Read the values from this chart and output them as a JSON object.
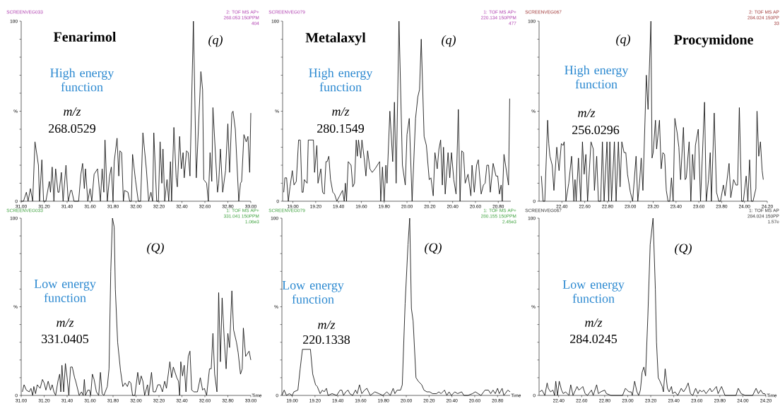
{
  "chart_data": [
    {
      "type": "line",
      "title": "Fenarimol",
      "color": "#000000",
      "annotations": [
        "(q)",
        "High energy function",
        "m/z",
        "268.0529",
        "SCREENVEG033",
        "2: TOF MS AP+",
        "268.053 150PPM",
        "404"
      ],
      "xlim": [
        31.0,
        33.0
      ],
      "ylim": [
        0,
        100
      ],
      "xticks": [
        {
          "value": 31.0,
          "label": "31.00"
        },
        {
          "value": 31.2,
          "label": "31.20"
        },
        {
          "value": 31.4,
          "label": "31.40"
        },
        {
          "value": 31.6,
          "label": "31.60"
        },
        {
          "value": 31.8,
          "label": "31.80"
        },
        {
          "value": 32.0,
          "label": "32.00"
        },
        {
          "value": 32.2,
          "label": "32.20"
        },
        {
          "value": 32.4,
          "label": "32.40"
        },
        {
          "value": 32.6,
          "label": "32.60"
        },
        {
          "value": 32.8,
          "label": "32.80"
        },
        {
          "value": 33.0,
          "label": "33.00"
        }
      ],
      "yticks": [
        0,
        {
          "value": 10,
          "label": null
        },
        {
          "value": 20,
          "label": null
        },
        {
          "value": 30,
          "label": null
        },
        {
          "value": 40,
          "label": null
        },
        {
          "value": 50,
          "label": "%"
        },
        {
          "value": 60,
          "label": null
        },
        {
          "value": 70,
          "label": null
        },
        {
          "value": 80,
          "label": null
        },
        {
          "value": 90,
          "label": null
        },
        100
      ],
      "x": [
        31.0,
        31.02,
        31.045,
        31.06,
        31.08,
        31.1,
        31.12,
        31.15,
        31.16,
        31.18,
        31.195,
        31.215,
        31.245,
        31.255,
        31.27,
        31.285,
        31.3,
        31.32,
        31.33,
        31.35,
        31.365,
        31.39,
        31.41,
        31.43,
        31.44,
        31.46,
        31.5,
        31.52,
        31.535,
        31.55,
        31.56,
        31.58,
        31.6,
        31.615,
        31.635,
        31.665,
        31.69,
        31.705,
        31.72,
        31.73,
        31.75,
        31.77,
        31.785,
        31.8,
        31.81,
        31.835,
        31.85,
        31.86,
        31.875,
        31.89,
        31.9,
        31.93,
        31.945,
        31.96,
        31.97,
        31.995,
        32.02,
        32.04,
        32.06,
        32.09,
        32.11,
        32.13,
        32.145,
        32.155,
        32.18,
        32.195,
        32.21,
        32.225,
        32.235,
        32.25,
        32.27,
        32.285,
        32.3,
        32.31,
        32.33,
        32.35,
        32.36,
        32.38,
        32.395,
        32.41,
        32.42,
        32.44,
        32.455,
        32.47,
        32.5,
        32.525,
        32.565,
        32.58,
        32.59,
        32.615,
        32.63,
        32.645,
        32.66,
        32.67,
        32.71,
        32.72,
        32.735,
        32.755,
        32.78,
        32.8,
        32.815,
        32.835,
        32.845,
        32.865,
        32.895,
        32.91,
        32.92,
        32.94,
        32.96,
        32.975,
        32.99,
        33.0
      ],
      "values": [
        0,
        0,
        5,
        0,
        7,
        0,
        33,
        20,
        0,
        23,
        0,
        0,
        11,
        5,
        19,
        0,
        18,
        5,
        5,
        16,
        0,
        20,
        0,
        6,
        6,
        0,
        0,
        15,
        21,
        7,
        18,
        0,
        7,
        0,
        15,
        18,
        0,
        18,
        5,
        34,
        0,
        14,
        19,
        0,
        22,
        35,
        14,
        28,
        27,
        0,
        6,
        5,
        0,
        0,
        26,
        12,
        0,
        0,
        38,
        18,
        0,
        5,
        0,
        38,
        0,
        0,
        33,
        10,
        29,
        0,
        12,
        0,
        22,
        0,
        41,
        13,
        8,
        36,
        18,
        27,
        13,
        28,
        27,
        14,
        100,
        13,
        72,
        62,
        12,
        10,
        0,
        27,
        11,
        52,
        5,
        10,
        29,
        5,
        17,
        43,
        16,
        49,
        50,
        40,
        0,
        10,
        11,
        37,
        33,
        36,
        16,
        49
      ]
    },
    {
      "type": "line",
      "title": "Metalaxyl",
      "color": "#000000",
      "annotations": [
        "(q)",
        "High energy function",
        "m/z",
        "280.1549",
        "SCREENVEG079",
        "1: TOF MS AP+",
        "220.134 150PPM",
        "477"
      ],
      "xlim": [
        18.91,
        20.91
      ],
      "ylim": [
        0,
        100
      ],
      "xticks": [
        {
          "value": 19.0,
          "label": "19.00"
        },
        {
          "value": 19.2,
          "label": "19.20"
        },
        {
          "value": 19.4,
          "label": "19.40"
        },
        {
          "value": 19.6,
          "label": "19.60"
        },
        {
          "value": 19.8,
          "label": "19.80"
        },
        {
          "value": 20.0,
          "label": "20.00"
        },
        {
          "value": 20.2,
          "label": "20.20"
        },
        {
          "value": 20.4,
          "label": "20.40"
        },
        {
          "value": 20.6,
          "label": "20.60"
        },
        {
          "value": 20.8,
          "label": "20.80"
        }
      ],
      "yticks": [
        0,
        {
          "value": 10,
          "label": null
        },
        {
          "value": 20,
          "label": null
        },
        {
          "value": 30,
          "label": null
        },
        {
          "value": 40,
          "label": null
        },
        {
          "value": 50,
          "label": "%"
        },
        {
          "value": 60,
          "label": null
        },
        {
          "value": 70,
          "label": null
        },
        {
          "value": 80,
          "label": null
        },
        {
          "value": 90,
          "label": null
        },
        100
      ],
      "x": [
        18.92,
        18.93,
        18.945,
        18.96,
        18.975,
        18.995,
        19.01,
        19.03,
        19.05,
        19.065,
        19.08,
        19.09,
        19.1,
        19.125,
        19.135,
        19.18,
        19.19,
        19.21,
        19.22,
        19.245,
        19.26,
        19.275,
        19.29,
        19.3,
        19.315,
        19.33,
        19.35,
        19.365,
        19.385,
        19.41,
        19.435,
        19.45,
        19.46,
        19.47,
        19.485,
        19.51,
        19.525,
        19.54,
        19.555,
        19.565,
        19.575,
        19.595,
        19.605,
        19.625,
        19.64,
        19.655,
        19.675,
        19.695,
        19.72,
        19.74,
        19.76,
        19.77,
        19.785,
        19.8,
        19.815,
        19.825,
        19.85,
        19.875,
        19.89,
        19.905,
        19.93,
        19.96,
        19.985,
        20.0,
        20.02,
        20.045,
        20.075,
        20.095,
        20.11,
        20.125,
        20.15,
        20.17,
        20.195,
        20.21,
        20.23,
        20.245,
        20.265,
        20.28,
        20.295,
        20.31,
        20.32,
        20.335,
        20.36,
        20.375,
        20.39,
        20.41,
        20.43,
        20.45,
        20.465,
        20.48,
        20.495,
        20.51,
        20.535,
        20.56,
        20.57,
        20.59,
        20.61,
        20.625,
        20.65,
        20.67,
        20.685,
        20.7,
        20.715,
        20.73,
        20.755,
        20.78,
        20.795,
        20.81,
        20.825,
        20.835,
        20.85,
        20.89,
        20.9
      ],
      "values": [
        5,
        13,
        13,
        0,
        8,
        17,
        9,
        11,
        34,
        34,
        5,
        5,
        12,
        10,
        34,
        34,
        16,
        31,
        10,
        18,
        5,
        4,
        22,
        22,
        25,
        12,
        5,
        4,
        0,
        3,
        6,
        0,
        10,
        0,
        22,
        20,
        8,
        10,
        34,
        25,
        34,
        24,
        34,
        24,
        14,
        28,
        18,
        16,
        18,
        20,
        22,
        0,
        19,
        0,
        20,
        10,
        50,
        22,
        55,
        10,
        100,
        20,
        9,
        37,
        46,
        0,
        46,
        58,
        62,
        90,
        36,
        31,
        12,
        13,
        3,
        27,
        18,
        29,
        34,
        9,
        30,
        4,
        27,
        13,
        27,
        12,
        4,
        51,
        0,
        28,
        27,
        10,
        15,
        3,
        20,
        5,
        20,
        23,
        4,
        9,
        10,
        20,
        20,
        5,
        21,
        14,
        14,
        4,
        9,
        0,
        26,
        9,
        57
      ]
    },
    {
      "type": "line",
      "title": "Procymidone",
      "color": "#000000",
      "annotations": [
        "(q)",
        "High energy function",
        "m/z",
        "256.0296",
        "SCREENVEG067",
        "2: TOF MS AP",
        "284.024 150PP",
        "33"
      ],
      "xlim": [
        22.2,
        24.2
      ],
      "ylim": [
        0,
        100
      ],
      "xticks": [
        {
          "value": 22.4,
          "label": "22.40"
        },
        {
          "value": 22.6,
          "label": "22.60"
        },
        {
          "value": 22.8,
          "label": "22.80"
        },
        {
          "value": 23.0,
          "label": "23.00"
        },
        {
          "value": 23.2,
          "label": "23.20"
        },
        {
          "value": 23.4,
          "label": "23.40"
        },
        {
          "value": 23.6,
          "label": "23.60"
        },
        {
          "value": 23.8,
          "label": "23.80"
        },
        {
          "value": 24.0,
          "label": "24.00"
        },
        {
          "value": 24.2,
          "label": "24.20"
        }
      ],
      "yticks": [
        0,
        {
          "value": 10,
          "label": null
        },
        {
          "value": 20,
          "label": null
        },
        {
          "value": 30,
          "label": null
        },
        {
          "value": 40,
          "label": null
        },
        {
          "value": 50,
          "label": "%"
        },
        {
          "value": 60,
          "label": null
        },
        {
          "value": 70,
          "label": null
        },
        {
          "value": 80,
          "label": null
        },
        {
          "value": 90,
          "label": null
        },
        100
      ],
      "x": [
        22.22,
        22.235,
        22.25,
        22.275,
        22.285,
        22.295,
        22.315,
        22.33,
        22.355,
        22.375,
        22.395,
        22.41,
        22.42,
        22.435,
        22.46,
        22.485,
        22.505,
        22.515,
        22.525,
        22.545,
        22.565,
        22.58,
        22.595,
        22.61,
        22.625,
        22.655,
        22.675,
        22.685,
        22.705,
        22.72,
        22.74,
        22.755,
        22.77,
        22.795,
        22.81,
        22.82,
        22.835,
        22.86,
        22.875,
        22.895,
        22.91,
        22.925,
        22.945,
        22.96,
        22.975,
        23.0,
        23.02,
        23.05,
        23.065,
        23.08,
        23.095,
        23.11,
        23.14,
        23.155,
        23.18,
        23.19,
        23.2,
        23.22,
        23.23,
        23.255,
        23.27,
        23.285,
        23.3,
        23.315,
        23.33,
        23.345,
        23.36,
        23.375,
        23.39,
        23.41,
        23.425,
        23.44,
        23.465,
        23.48,
        23.49,
        23.515,
        23.53,
        23.545,
        23.56,
        23.57,
        23.595,
        23.615,
        23.65,
        23.665,
        23.685,
        23.7,
        23.71,
        23.735,
        23.755,
        23.775,
        23.79,
        23.815,
        23.83,
        23.865,
        23.88,
        23.905,
        23.925,
        23.94,
        23.955,
        23.975,
        23.99,
        24.015,
        24.03,
        24.045,
        24.06,
        24.075,
        24.1,
        24.11,
        24.125,
        24.14,
        24.155,
        24.165
      ],
      "values": [
        14,
        0,
        0,
        45,
        32,
        25,
        20,
        6,
        30,
        17,
        32,
        31,
        33,
        0,
        10,
        25,
        0,
        12,
        0,
        24,
        0,
        33,
        15,
        26,
        0,
        33,
        29,
        6,
        25,
        0,
        0,
        33,
        0,
        33,
        0,
        33,
        0,
        33,
        0,
        33,
        8,
        33,
        27,
        27,
        15,
        5,
        0,
        25,
        0,
        10,
        24,
        6,
        70,
        51,
        100,
        24,
        27,
        45,
        29,
        45,
        18,
        27,
        26,
        6,
        0,
        0,
        13,
        0,
        46,
        38,
        30,
        12,
        41,
        12,
        13,
        33,
        0,
        26,
        12,
        31,
        40,
        0,
        55,
        0,
        12,
        27,
        0,
        49,
        5,
        0,
        0,
        9,
        3,
        21,
        2,
        12,
        9,
        9,
        52,
        0,
        0,
        14,
        0,
        23,
        0,
        0,
        7,
        50,
        25,
        33,
        17,
        12
      ]
    },
    {
      "type": "line",
      "xlabel": "Time",
      "color": "#000000",
      "annotations": [
        "(Q)",
        "Low energy function",
        "m/z",
        "331.0405",
        "SCREENVEG033",
        "1: TOF MS AP+",
        "331.041 150PPM",
        "1.06e3"
      ],
      "xlim": [
        31.0,
        33.0
      ],
      "ylim": [
        0,
        100
      ],
      "xticks": [
        {
          "value": 31.0,
          "label": "31.00"
        },
        {
          "value": 31.2,
          "label": "31.20"
        },
        {
          "value": 31.4,
          "label": "31.40"
        },
        {
          "value": 31.6,
          "label": "31.60"
        },
        {
          "value": 31.8,
          "label": "31.80"
        },
        {
          "value": 32.0,
          "label": "32.00"
        },
        {
          "value": 32.2,
          "label": "32.20"
        },
        {
          "value": 32.4,
          "label": "32.40"
        },
        {
          "value": 32.6,
          "label": "32.60"
        },
        {
          "value": 32.8,
          "label": "32.80"
        },
        {
          "value": 33.0,
          "label": "33.00"
        }
      ],
      "yticks": [
        0,
        {
          "value": 10,
          "label": null
        },
        {
          "value": 20,
          "label": null
        },
        {
          "value": 30,
          "label": null
        },
        {
          "value": 40,
          "label": null
        },
        {
          "value": 50,
          "label": "%"
        },
        {
          "value": 60,
          "label": null
        },
        {
          "value": 70,
          "label": null
        },
        {
          "value": 80,
          "label": null
        },
        {
          "value": 90,
          "label": null
        },
        100
      ],
      "x": [
        31.01,
        31.025,
        31.045,
        31.07,
        31.085,
        31.1,
        31.11,
        31.125,
        31.14,
        31.165,
        31.185,
        31.2,
        31.215,
        31.235,
        31.255,
        31.27,
        31.285,
        31.3,
        31.32,
        31.335,
        31.345,
        31.355,
        31.37,
        31.385,
        31.4,
        31.415,
        31.43,
        31.445,
        31.465,
        31.475,
        31.505,
        31.525,
        31.54,
        31.55,
        31.56,
        31.58,
        31.595,
        31.605,
        31.62,
        31.635,
        31.655,
        31.675,
        31.69,
        31.705,
        31.72,
        31.75,
        31.765,
        31.78,
        31.795,
        31.81,
        31.82,
        31.84,
        31.865,
        31.885,
        31.905,
        31.925,
        31.94,
        31.955,
        31.97,
        31.99,
        32.015,
        32.03,
        32.045,
        32.06,
        32.075,
        32.1,
        32.11,
        32.135,
        32.15,
        32.17,
        32.19,
        32.21,
        32.23,
        32.25,
        32.265,
        32.295,
        32.31,
        32.325,
        32.355,
        32.37,
        32.38,
        32.39,
        32.405,
        32.42,
        32.435,
        32.455,
        32.47,
        32.485,
        32.505,
        32.535,
        32.56,
        32.58,
        32.595,
        32.615,
        32.64,
        32.655,
        32.67,
        32.685,
        32.705,
        32.72,
        32.735,
        32.75,
        32.77,
        32.785,
        32.8,
        32.815,
        32.835,
        32.85,
        32.875,
        32.89,
        32.91,
        32.925,
        32.935,
        32.955,
        32.985,
        33.0
      ],
      "values": [
        2,
        6,
        3,
        2,
        4,
        0,
        5,
        1,
        6,
        4,
        9,
        7,
        3,
        8,
        3,
        6,
        2,
        0,
        8,
        12,
        2,
        17,
        2,
        18,
        10,
        0,
        16,
        16,
        10,
        8,
        0,
        2,
        0,
        9,
        0,
        3,
        3,
        0,
        12,
        9,
        2,
        0,
        13,
        1,
        0,
        5,
        15,
        70,
        100,
        95,
        60,
        30,
        14,
        5,
        7,
        5,
        8,
        7,
        0,
        0,
        13,
        6,
        11,
        8,
        0,
        6,
        0,
        13,
        2,
        2,
        6,
        6,
        2,
        8,
        4,
        19,
        10,
        16,
        10,
        8,
        0,
        19,
        11,
        17,
        2,
        22,
        25,
        3,
        2,
        2,
        10,
        3,
        4,
        0,
        15,
        15,
        35,
        12,
        2,
        58,
        19,
        55,
        30,
        15,
        35,
        27,
        59,
        37,
        30,
        24,
        12,
        15,
        38,
        22,
        25,
        20
      ]
    },
    {
      "type": "line",
      "xlabel": "Time",
      "color": "#000000",
      "annotations": [
        "(Q)",
        "Low energy function",
        "m/z",
        "220.1338",
        "SCREENVEG079",
        "1: TOF MS AP+",
        "280.155 150PPM",
        "2.45e3"
      ],
      "xlim": [
        18.91,
        20.91
      ],
      "ylim": [
        0,
        100
      ],
      "xticks": [
        {
          "value": 19.0,
          "label": "19.00"
        },
        {
          "value": 19.2,
          "label": "19.20"
        },
        {
          "value": 19.4,
          "label": "19.40"
        },
        {
          "value": 19.6,
          "label": "19.60"
        },
        {
          "value": 19.8,
          "label": "19.80"
        },
        {
          "value": 20.0,
          "label": "20.00"
        },
        {
          "value": 20.2,
          "label": "20.20"
        },
        {
          "value": 20.4,
          "label": "20.40"
        },
        {
          "value": 20.6,
          "label": "20.60"
        },
        {
          "value": 20.8,
          "label": "20.80"
        }
      ],
      "yticks": [
        0,
        {
          "value": 10,
          "label": null
        },
        {
          "value": 20,
          "label": null
        },
        {
          "value": 30,
          "label": null
        },
        {
          "value": 40,
          "label": null
        },
        {
          "value": 50,
          "label": "%"
        },
        {
          "value": 60,
          "label": null
        },
        {
          "value": 70,
          "label": null
        },
        {
          "value": 80,
          "label": null
        },
        {
          "value": 90,
          "label": null
        },
        100
      ],
      "x": [
        18.91,
        18.93,
        18.95,
        18.975,
        19.0,
        19.015,
        19.05,
        19.07,
        19.09,
        19.16,
        19.18,
        19.205,
        19.22,
        19.245,
        19.265,
        19.28,
        19.3,
        19.315,
        19.35,
        19.39,
        19.42,
        19.435,
        19.45,
        19.47,
        19.49,
        19.505,
        19.53,
        19.555,
        19.57,
        19.59,
        19.61,
        19.635,
        19.655,
        19.685,
        19.725,
        19.76,
        19.795,
        19.83,
        19.86,
        19.885,
        19.9,
        19.92,
        19.95,
        19.965,
        19.99,
        20.015,
        20.03,
        20.045,
        20.06,
        20.085,
        20.105,
        20.135,
        20.155,
        20.18,
        20.205,
        20.23,
        20.265,
        20.285,
        20.305,
        20.335,
        20.355,
        20.375,
        20.395,
        20.425,
        20.45,
        20.485,
        20.505,
        20.54,
        20.58,
        20.605,
        20.63,
        20.655,
        20.69,
        20.72,
        20.74,
        20.76,
        20.78,
        20.8,
        20.815,
        20.84,
        20.855,
        20.89,
        20.91
      ],
      "values": [
        0,
        3,
        0,
        1,
        0,
        2,
        3,
        15,
        26,
        26,
        12,
        6,
        5,
        1,
        3,
        2,
        4,
        0,
        1,
        0,
        3,
        3,
        0,
        2,
        3,
        1,
        0,
        3,
        1,
        6,
        1,
        3,
        4,
        0,
        2,
        1,
        0,
        2,
        0,
        4,
        1,
        3,
        3,
        6,
        52,
        85,
        100,
        49,
        42,
        10,
        8,
        6,
        3,
        2,
        2,
        1,
        1,
        2,
        1,
        3,
        0,
        2,
        0,
        2,
        1,
        2,
        0,
        0,
        1,
        2,
        1,
        0,
        3,
        3,
        1,
        3,
        1,
        4,
        1,
        4,
        0,
        3,
        2
      ]
    },
    {
      "type": "line",
      "xlabel": "Time",
      "color": "#000000",
      "annotations": [
        "(Q)",
        "Low energy function",
        "m/z",
        "284.0245",
        "SCREENVEG067",
        "1: TOF MS AP",
        "284.024 150PP",
        "1.57e"
      ],
      "xlim": [
        22.23,
        24.2
      ],
      "ylim": [
        0,
        100
      ],
      "xticks": [
        {
          "value": 22.4,
          "label": "22.40"
        },
        {
          "value": 22.6,
          "label": "22.60"
        },
        {
          "value": 22.8,
          "label": "22.80"
        },
        {
          "value": 23.0,
          "label": "23.00"
        },
        {
          "value": 23.2,
          "label": "23.20"
        },
        {
          "value": 23.4,
          "label": "23.40"
        },
        {
          "value": 23.6,
          "label": "23.60"
        },
        {
          "value": 23.8,
          "label": "23.80"
        },
        {
          "value": 24.0,
          "label": "24.00"
        },
        {
          "value": 24.2,
          "label": "24.20"
        }
      ],
      "yticks": [
        0,
        {
          "value": 10,
          "label": null
        },
        {
          "value": 20,
          "label": null
        },
        {
          "value": 30,
          "label": null
        },
        {
          "value": 40,
          "label": null
        },
        {
          "value": 50,
          "label": "%"
        },
        {
          "value": 60,
          "label": null
        },
        {
          "value": 70,
          "label": null
        },
        {
          "value": 80,
          "label": null
        },
        {
          "value": 90,
          "label": null
        },
        100
      ],
      "x": [
        22.235,
        22.255,
        22.28,
        22.3,
        22.31,
        22.33,
        22.35,
        22.365,
        22.375,
        22.39,
        22.405,
        22.425,
        22.44,
        22.46,
        22.49,
        22.505,
        22.525,
        22.56,
        22.575,
        22.595,
        22.61,
        22.63,
        22.65,
        22.685,
        22.7,
        22.73,
        22.745,
        22.765,
        22.8,
        22.815,
        22.855,
        22.955,
        22.98,
        23.01,
        23.03,
        23.04,
        23.06,
        23.08,
        23.095,
        23.11,
        23.125,
        23.14,
        23.155,
        23.175,
        23.195,
        23.22,
        23.24,
        23.25,
        23.265,
        23.28,
        23.3,
        23.31,
        23.325,
        23.345,
        23.36,
        23.38,
        23.39,
        23.41,
        23.435,
        23.465,
        23.485,
        23.505,
        23.525,
        23.545,
        23.565,
        23.59,
        23.61,
        23.625,
        23.645,
        23.66,
        23.68,
        23.715,
        23.73,
        23.745,
        23.77,
        23.785,
        23.815,
        23.845,
        23.94,
        23.96,
        23.985,
        24.02,
        24.085,
        24.115,
        24.135,
        24.155,
        24.175,
        24.19,
        24.2
      ],
      "values": [
        2,
        3,
        0,
        7,
        4,
        2,
        3,
        0,
        8,
        0,
        8,
        3,
        1,
        2,
        0,
        6,
        0,
        5,
        3,
        4,
        5,
        1,
        0,
        3,
        0,
        6,
        1,
        2,
        3,
        1,
        0,
        0,
        4,
        2,
        2,
        0,
        8,
        2,
        0,
        3,
        13,
        16,
        11,
        45,
        85,
        100,
        60,
        30,
        10,
        8,
        5,
        2,
        15,
        4,
        2,
        5,
        1,
        2,
        0,
        4,
        2,
        4,
        7,
        1,
        0,
        4,
        1,
        3,
        2,
        3,
        1,
        4,
        2,
        3,
        5,
        1,
        5,
        0,
        0,
        4,
        1,
        0,
        0,
        4,
        1,
        3,
        1,
        1,
        0
      ]
    }
  ]
}
